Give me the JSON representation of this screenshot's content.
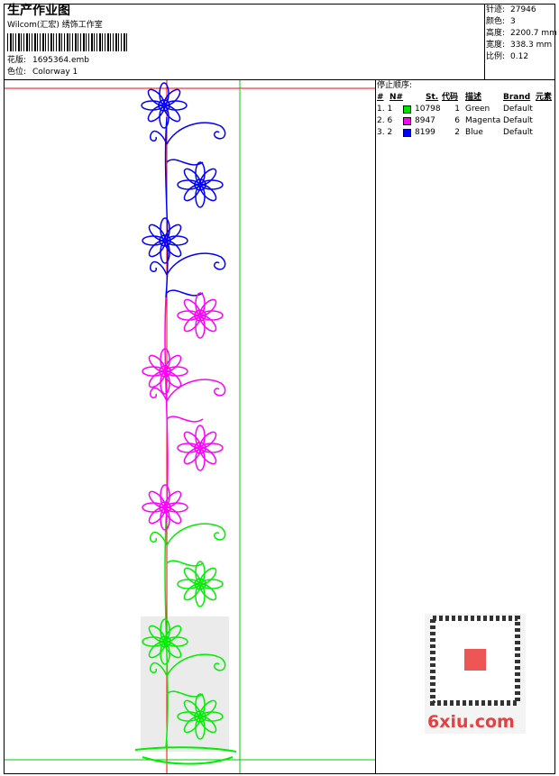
{
  "header": {
    "title": "生产作业图",
    "studio": "Wilcom(汇宏) 绣饰工作室",
    "design_label": "花版:",
    "design": "1695364.emb",
    "colorway_label": "色位:",
    "colorway": "Colorway 1"
  },
  "info": [
    {
      "label": "针迹:",
      "value": "27946"
    },
    {
      "label": "颜色:",
      "value": "3"
    },
    {
      "label": "高度:",
      "value": "2200.7 mm"
    },
    {
      "label": "宽度:",
      "value": "338.3 mm"
    },
    {
      "label": "比例:",
      "value": "0.12"
    }
  ],
  "stop_sequence": {
    "title": "停止顺序:",
    "columns": [
      "#",
      "N#",
      "St.",
      "代码",
      "描述",
      "Brand",
      "元素"
    ],
    "rows": [
      {
        "seq": "1. 1",
        "color": "#00e000",
        "stitches": "10798",
        "code": "1",
        "description": "Green",
        "brand": "Default"
      },
      {
        "seq": "2. 6",
        "color": "#ff00ff",
        "stitches": "8947",
        "code": "6",
        "description": "Magenta",
        "brand": "Default"
      },
      {
        "seq": "3. 2",
        "color": "#0000ff",
        "stitches": "8199",
        "code": "2",
        "description": "Blue",
        "brand": "Default"
      }
    ]
  },
  "watermark": "6xiu.com"
}
